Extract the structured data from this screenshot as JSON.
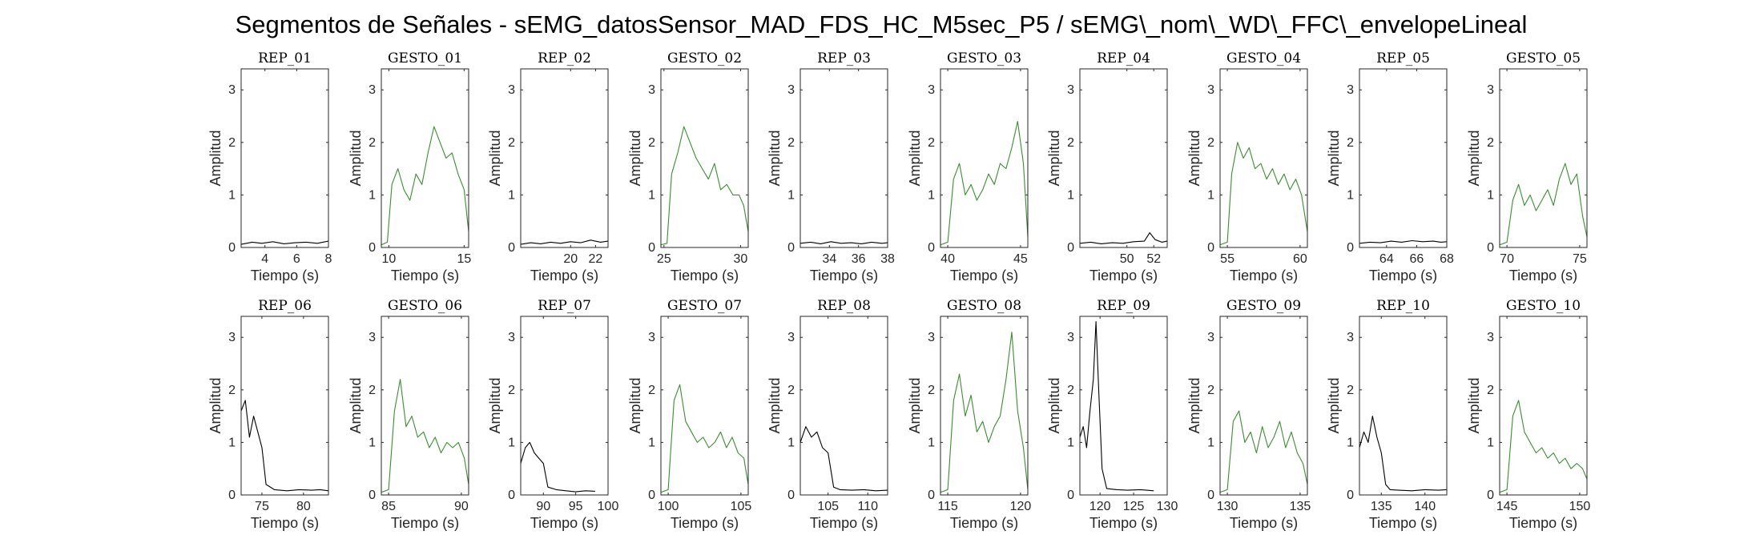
{
  "figure": {
    "title": "Segmentos de Señales - sEMG_datosSensor_MAD_FDS_HC_M5sec_P5 / sEMG\\_nom\\_WD\\_FFC\\_envelopeLineal"
  },
  "colors": {
    "rep": "#000000",
    "gesto": "#3c8c32",
    "axes": "#262626"
  },
  "chart_data": [
    {
      "type": "line",
      "title": "REP_01",
      "kind": "rep",
      "xlabel": "Tiempo (s)",
      "ylabel": "Amplitud",
      "xlim": [
        2.5,
        8
      ],
      "ylim": [
        0,
        3.4
      ],
      "xticks": [
        4,
        6,
        8
      ],
      "yticks": [
        0,
        1,
        2,
        3
      ],
      "series": [
        {
          "x": [
            2.5,
            3.2,
            3.8,
            4.5,
            5.2,
            5.9,
            6.6,
            7.3,
            8
          ],
          "y": [
            0.06,
            0.1,
            0.08,
            0.11,
            0.07,
            0.09,
            0.1,
            0.08,
            0.12
          ]
        }
      ]
    },
    {
      "type": "line",
      "title": "GESTO_01",
      "kind": "gesto",
      "xlabel": "Tiempo (s)",
      "ylabel": "Amplitud",
      "xlim": [
        9.5,
        15.3
      ],
      "ylim": [
        0,
        3.4
      ],
      "xticks": [
        10,
        15
      ],
      "yticks": [
        0,
        1,
        2,
        3
      ],
      "series": [
        {
          "x": [
            9.5,
            9.9,
            10.2,
            10.6,
            11,
            11.4,
            11.8,
            12.2,
            12.6,
            13,
            13.4,
            13.8,
            14.2,
            14.6,
            15,
            15.3
          ],
          "y": [
            0.05,
            0.1,
            1.2,
            1.5,
            1.1,
            0.9,
            1.4,
            1.2,
            1.8,
            2.3,
            2,
            1.7,
            1.8,
            1.4,
            1.1,
            0.3
          ]
        }
      ]
    },
    {
      "type": "line",
      "title": "REP_02",
      "kind": "rep",
      "xlabel": "Tiempo (s)",
      "ylabel": "Amplitud",
      "xlim": [
        16,
        23
      ],
      "ylim": [
        0,
        3.4
      ],
      "xticks": [
        20,
        22
      ],
      "yticks": [
        0,
        1,
        2,
        3
      ],
      "series": [
        {
          "x": [
            16,
            16.8,
            17.6,
            18.4,
            19.2,
            20,
            20.8,
            21.6,
            22.4,
            23
          ],
          "y": [
            0.06,
            0.09,
            0.07,
            0.1,
            0.08,
            0.11,
            0.09,
            0.14,
            0.1,
            0.12
          ]
        }
      ]
    },
    {
      "type": "line",
      "title": "GESTO_02",
      "kind": "gesto",
      "xlabel": "Tiempo (s)",
      "ylabel": "Amplitud",
      "xlim": [
        24.8,
        30.5
      ],
      "ylim": [
        0,
        3.4
      ],
      "xticks": [
        25,
        30
      ],
      "yticks": [
        0,
        1,
        2,
        3
      ],
      "series": [
        {
          "x": [
            24.8,
            25.2,
            25.5,
            25.9,
            26.3,
            26.7,
            27.1,
            27.5,
            27.9,
            28.3,
            28.7,
            29.1,
            29.5,
            29.9,
            30.2,
            30.5
          ],
          "y": [
            0.05,
            0.08,
            1.4,
            1.8,
            2.3,
            2,
            1.7,
            1.5,
            1.3,
            1.6,
            1.1,
            1.2,
            1,
            1,
            0.8,
            0.3
          ]
        }
      ]
    },
    {
      "type": "line",
      "title": "REP_03",
      "kind": "rep",
      "xlabel": "Tiempo (s)",
      "ylabel": "Amplitud",
      "xlim": [
        32,
        38
      ],
      "ylim": [
        0,
        3.4
      ],
      "xticks": [
        34,
        36,
        38
      ],
      "yticks": [
        0,
        1,
        2,
        3
      ],
      "series": [
        {
          "x": [
            32,
            32.7,
            33.4,
            34.1,
            34.8,
            35.5,
            36.2,
            36.9,
            37.6,
            38
          ],
          "y": [
            0.08,
            0.1,
            0.07,
            0.11,
            0.08,
            0.09,
            0.07,
            0.1,
            0.08,
            0.09
          ]
        }
      ]
    },
    {
      "type": "line",
      "title": "GESTO_03",
      "kind": "gesto",
      "xlabel": "Tiempo (s)",
      "ylabel": "Amplitud",
      "xlim": [
        39.5,
        45.5
      ],
      "ylim": [
        0,
        3.4
      ],
      "xticks": [
        40,
        45
      ],
      "yticks": [
        0,
        1,
        2,
        3
      ],
      "series": [
        {
          "x": [
            39.5,
            40,
            40.4,
            40.8,
            41.2,
            41.6,
            42,
            42.4,
            42.8,
            43.2,
            43.6,
            44,
            44.4,
            44.8,
            45.2,
            45.5
          ],
          "y": [
            0.05,
            0.1,
            1.3,
            1.6,
            1,
            1.2,
            0.9,
            1.1,
            1.4,
            1.2,
            1.6,
            1.5,
            1.9,
            2.4,
            1.6,
            0.2
          ]
        }
      ]
    },
    {
      "type": "line",
      "title": "REP_04",
      "kind": "rep",
      "xlabel": "Tiempo (s)",
      "ylabel": "Amplitud",
      "xlim": [
        46.5,
        53
      ],
      "ylim": [
        0,
        3.4
      ],
      "xticks": [
        50,
        52
      ],
      "yticks": [
        0,
        1,
        2,
        3
      ],
      "series": [
        {
          "x": [
            46.5,
            47.3,
            48.1,
            48.9,
            49.7,
            50.5,
            51.3,
            51.7,
            52.1,
            52.6,
            53
          ],
          "y": [
            0.08,
            0.1,
            0.07,
            0.09,
            0.08,
            0.11,
            0.12,
            0.28,
            0.15,
            0.1,
            0.12
          ]
        }
      ]
    },
    {
      "type": "line",
      "title": "GESTO_04",
      "kind": "gesto",
      "xlabel": "Tiempo (s)",
      "ylabel": "Amplitud",
      "xlim": [
        54.5,
        60.5
      ],
      "ylim": [
        0,
        3.4
      ],
      "xticks": [
        55,
        60
      ],
      "yticks": [
        0,
        1,
        2,
        3
      ],
      "series": [
        {
          "x": [
            54.5,
            55,
            55.3,
            55.7,
            56.1,
            56.5,
            56.9,
            57.3,
            57.7,
            58.1,
            58.5,
            58.9,
            59.3,
            59.7,
            60.1,
            60.5
          ],
          "y": [
            0.05,
            0.1,
            1.4,
            2,
            1.7,
            1.9,
            1.5,
            1.6,
            1.3,
            1.5,
            1.2,
            1.4,
            1.1,
            1.3,
            1,
            0.3
          ]
        }
      ]
    },
    {
      "type": "line",
      "title": "REP_05",
      "kind": "rep",
      "xlabel": "Tiempo (s)",
      "ylabel": "Amplitud",
      "xlim": [
        62.2,
        68
      ],
      "ylim": [
        0,
        3.4
      ],
      "xticks": [
        64,
        66,
        68
      ],
      "yticks": [
        0,
        1,
        2,
        3
      ],
      "series": [
        {
          "x": [
            62.2,
            62.9,
            63.6,
            64.3,
            65,
            65.7,
            66.4,
            67.1,
            67.6,
            68
          ],
          "y": [
            0.08,
            0.1,
            0.09,
            0.12,
            0.1,
            0.13,
            0.11,
            0.12,
            0.1,
            0.11
          ]
        }
      ]
    },
    {
      "type": "line",
      "title": "GESTO_05",
      "kind": "gesto",
      "xlabel": "Tiempo (s)",
      "ylabel": "Amplitud",
      "xlim": [
        69.5,
        75.5
      ],
      "ylim": [
        0,
        3.4
      ],
      "xticks": [
        70,
        75
      ],
      "yticks": [
        0,
        1,
        2,
        3
      ],
      "series": [
        {
          "x": [
            69.5,
            70,
            70.4,
            70.8,
            71.2,
            71.6,
            72,
            72.4,
            72.8,
            73.2,
            73.6,
            74,
            74.4,
            74.8,
            75.2,
            75.5
          ],
          "y": [
            0.05,
            0.1,
            0.9,
            1.2,
            0.8,
            1,
            0.7,
            0.9,
            1.1,
            0.8,
            1.3,
            1.6,
            1.2,
            1.4,
            0.6,
            0.2
          ]
        }
      ]
    },
    {
      "type": "line",
      "title": "REP_06",
      "kind": "rep",
      "xlabel": "Tiempo (s)",
      "ylabel": "Amplitud",
      "xlim": [
        72.5,
        83
      ],
      "ylim": [
        0,
        3.4
      ],
      "xticks": [
        75,
        80
      ],
      "yticks": [
        0,
        1,
        2,
        3
      ],
      "series": [
        {
          "x": [
            72.5,
            73,
            73.5,
            74,
            74.5,
            75,
            75.5,
            76.5,
            78,
            79.5,
            81,
            82,
            83
          ],
          "y": [
            1.6,
            1.8,
            1.1,
            1.5,
            1.2,
            0.9,
            0.2,
            0.1,
            0.08,
            0.1,
            0.09,
            0.1,
            0.08
          ]
        }
      ]
    },
    {
      "type": "line",
      "title": "GESTO_06",
      "kind": "gesto",
      "xlabel": "Tiempo (s)",
      "ylabel": "Amplitud",
      "xlim": [
        84.5,
        90.5
      ],
      "ylim": [
        0,
        3.4
      ],
      "xticks": [
        85,
        90
      ],
      "yticks": [
        0,
        1,
        2,
        3
      ],
      "series": [
        {
          "x": [
            84.5,
            85,
            85.4,
            85.8,
            86.2,
            86.6,
            87,
            87.4,
            87.8,
            88.2,
            88.6,
            89,
            89.4,
            89.8,
            90.2,
            90.5
          ],
          "y": [
            0.05,
            0.1,
            1.6,
            2.2,
            1.3,
            1.5,
            1.1,
            1.2,
            0.9,
            1.1,
            0.8,
            1,
            0.9,
            1,
            0.7,
            0.2
          ]
        }
      ]
    },
    {
      "type": "line",
      "title": "REP_07",
      "kind": "rep",
      "xlabel": "Tiempo (s)",
      "ylabel": "Amplitud",
      "xlim": [
        86.5,
        100
      ],
      "ylim": [
        0,
        3.4
      ],
      "xticks": [
        90,
        95,
        100
      ],
      "yticks": [
        0,
        1,
        2,
        3
      ],
      "series": [
        {
          "x": [
            86.5,
            87.2,
            87.9,
            88.6,
            89.3,
            90,
            90.7,
            92,
            93.5,
            95,
            96.5,
            98
          ],
          "y": [
            0.6,
            0.9,
            1,
            0.8,
            0.7,
            0.6,
            0.15,
            0.1,
            0.08,
            0.06,
            0.08,
            0.07
          ]
        }
      ]
    },
    {
      "type": "line",
      "title": "GESTO_07",
      "kind": "gesto",
      "xlabel": "Tiempo (s)",
      "ylabel": "Amplitud",
      "xlim": [
        99.5,
        105.5
      ],
      "ylim": [
        0,
        3.4
      ],
      "xticks": [
        100,
        105
      ],
      "yticks": [
        0,
        1,
        2,
        3
      ],
      "series": [
        {
          "x": [
            99.5,
            100,
            100.4,
            100.8,
            101.2,
            101.6,
            102,
            102.4,
            102.8,
            103.2,
            103.6,
            104,
            104.4,
            104.8,
            105.2,
            105.5
          ],
          "y": [
            0.05,
            0.1,
            1.8,
            2.1,
            1.4,
            1.2,
            1,
            1.1,
            0.9,
            1,
            1.2,
            0.9,
            1.1,
            0.8,
            0.7,
            0.2
          ]
        }
      ]
    },
    {
      "type": "line",
      "title": "REP_08",
      "kind": "rep",
      "xlabel": "Tiempo (s)",
      "ylabel": "Amplitud",
      "xlim": [
        101.5,
        112.5
      ],
      "ylim": [
        0,
        3.4
      ],
      "xticks": [
        105,
        110
      ],
      "yticks": [
        0,
        1,
        2,
        3
      ],
      "series": [
        {
          "x": [
            101.5,
            102.2,
            102.9,
            103.6,
            104.3,
            105,
            105.7,
            106.5,
            108,
            109.5,
            111,
            112.5
          ],
          "y": [
            1,
            1.3,
            1.1,
            1.2,
            0.9,
            0.8,
            0.15,
            0.1,
            0.09,
            0.1,
            0.08,
            0.09
          ]
        }
      ]
    },
    {
      "type": "line",
      "title": "GESTO_08",
      "kind": "gesto",
      "xlabel": "Tiempo (s)",
      "ylabel": "Amplitud",
      "xlim": [
        114.5,
        120.5
      ],
      "ylim": [
        0,
        3.4
      ],
      "xticks": [
        115,
        120
      ],
      "yticks": [
        0,
        1,
        2,
        3
      ],
      "series": [
        {
          "x": [
            114.5,
            115,
            115.4,
            115.8,
            116.2,
            116.6,
            117,
            117.4,
            117.8,
            118.2,
            118.6,
            119,
            119.4,
            119.8,
            120.2,
            120.5
          ],
          "y": [
            0.05,
            0.1,
            1.8,
            2.3,
            1.5,
            1.9,
            1.2,
            1.4,
            1,
            1.3,
            1.5,
            2.2,
            3.1,
            1.6,
            0.9,
            0.1
          ]
        }
      ]
    },
    {
      "type": "line",
      "title": "REP_09",
      "kind": "rep",
      "xlabel": "Tiempo (s)",
      "ylabel": "Amplitud",
      "xlim": [
        117,
        130
      ],
      "ylim": [
        0,
        3.4
      ],
      "xticks": [
        120,
        125,
        130
      ],
      "yticks": [
        0,
        1,
        2,
        3
      ],
      "series": [
        {
          "x": [
            117,
            117.5,
            118,
            118.5,
            119,
            119.4,
            119.8,
            120.3,
            121,
            122.5,
            124,
            126,
            128
          ],
          "y": [
            1.1,
            1.3,
            0.9,
            1.6,
            2.2,
            3.3,
            2,
            0.5,
            0.12,
            0.1,
            0.09,
            0.1,
            0.08
          ]
        }
      ]
    },
    {
      "type": "line",
      "title": "GESTO_09",
      "kind": "gesto",
      "xlabel": "Tiempo (s)",
      "ylabel": "Amplitud",
      "xlim": [
        129.5,
        135.5
      ],
      "ylim": [
        0,
        3.4
      ],
      "xticks": [
        130,
        135
      ],
      "yticks": [
        0,
        1,
        2,
        3
      ],
      "series": [
        {
          "x": [
            129.5,
            130,
            130.4,
            130.8,
            131.2,
            131.6,
            132,
            132.4,
            132.8,
            133.2,
            133.6,
            134,
            134.4,
            134.8,
            135.2,
            135.5
          ],
          "y": [
            0.05,
            0.1,
            1.4,
            1.6,
            1,
            1.2,
            0.8,
            1.3,
            0.9,
            1.1,
            1.4,
            0.9,
            1.2,
            0.8,
            0.6,
            0.2
          ]
        }
      ]
    },
    {
      "type": "line",
      "title": "REP_10",
      "kind": "rep",
      "xlabel": "Tiempo (s)",
      "ylabel": "Amplitud",
      "xlim": [
        132.5,
        142.5
      ],
      "ylim": [
        0,
        3.4
      ],
      "xticks": [
        135,
        140
      ],
      "yticks": [
        0,
        1,
        2,
        3
      ],
      "series": [
        {
          "x": [
            132.5,
            133,
            133.5,
            134,
            134.5,
            135,
            135.5,
            136,
            137,
            138.5,
            140,
            141.5,
            142.5
          ],
          "y": [
            0.9,
            1.2,
            1,
            1.5,
            1.1,
            0.8,
            0.2,
            0.1,
            0.09,
            0.08,
            0.1,
            0.09,
            0.1
          ]
        }
      ]
    },
    {
      "type": "line",
      "title": "GESTO_10",
      "kind": "gesto",
      "xlabel": "Tiempo (s)",
      "ylabel": "Amplitud",
      "xlim": [
        144.5,
        150.5
      ],
      "ylim": [
        0,
        3.4
      ],
      "xticks": [
        145,
        150
      ],
      "yticks": [
        0,
        1,
        2,
        3
      ],
      "series": [
        {
          "x": [
            144.5,
            145,
            145.4,
            145.8,
            146.2,
            146.6,
            147,
            147.4,
            147.8,
            148.2,
            148.6,
            149,
            149.4,
            149.8,
            150.2,
            150.5
          ],
          "y": [
            0.05,
            0.1,
            1.5,
            1.8,
            1.2,
            1,
            0.8,
            0.9,
            0.7,
            0.8,
            0.6,
            0.7,
            0.5,
            0.6,
            0.5,
            0.3
          ]
        }
      ]
    }
  ]
}
